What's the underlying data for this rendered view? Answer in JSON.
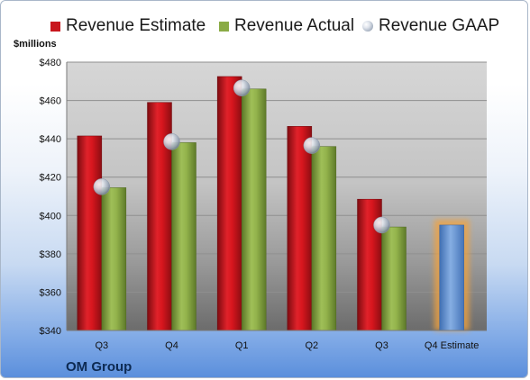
{
  "chart_data": {
    "type": "bar",
    "categories": [
      "Q3",
      "Q4",
      "Q1",
      "Q2",
      "Q3",
      "Q4 Estimate"
    ],
    "series": [
      {
        "name": "Revenue Estimate",
        "values": [
          441.5,
          459,
          472.5,
          446.5,
          408.5,
          null
        ]
      },
      {
        "name": "Revenue Actual",
        "values": [
          414.5,
          438,
          466,
          436,
          394,
          null
        ]
      },
      {
        "name": "Revenue GAAP",
        "values": [
          415,
          438.5,
          466.5,
          436.5,
          395,
          null
        ]
      },
      {
        "name": "Q4 Estimate",
        "values": [
          null,
          null,
          null,
          null,
          null,
          395
        ]
      }
    ],
    "ylabel": "$millions",
    "ylim": [
      340,
      480
    ],
    "yticks": [
      340,
      360,
      380,
      400,
      420,
      440,
      460,
      480
    ],
    "ytick_labels": [
      "$340",
      "$360",
      "$380",
      "$400",
      "$420",
      "$440",
      "$460",
      "$480"
    ],
    "grid": true,
    "legend_position": "top",
    "colors": {
      "estimate": "#c8161d",
      "actual": "#8aab45",
      "gaap": "#b9c2cf",
      "q4_estimate": "#6f9bd6",
      "q4_glow": "#f3a33c"
    }
  },
  "legend": {
    "estimate": "Revenue Estimate",
    "actual": "Revenue Actual",
    "gaap": "Revenue GAAP"
  },
  "unit_label": "$millions",
  "company": "OM Group"
}
